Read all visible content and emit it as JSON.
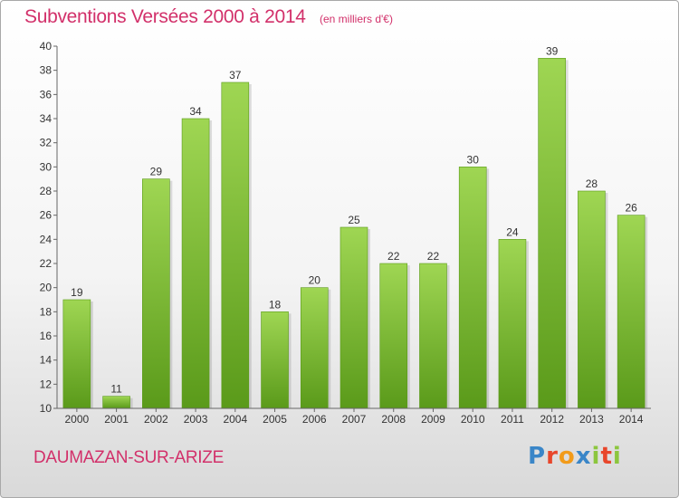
{
  "header": {
    "title": "Subventions Versées 2000 à 2014",
    "subtitle": "(en milliers d'€)"
  },
  "footer": {
    "commune": "DAUMAZAN-SUR-ARIZE",
    "logo_letters": [
      "P",
      "r",
      "o",
      "x",
      "i",
      "t",
      "i"
    ],
    "logo_colors": [
      "#3a86c8",
      "#e8462b",
      "#f29b1a",
      "#3a86c8",
      "#8cc63e",
      "#e8462b",
      "#8cc63e"
    ]
  },
  "chart_data": {
    "type": "bar",
    "title": "Subventions Versées 2000 à 2014",
    "subtitle": "(en milliers d'€)",
    "categories": [
      "2000",
      "2001",
      "2002",
      "2003",
      "2004",
      "2005",
      "2006",
      "2007",
      "2008",
      "2009",
      "2010",
      "2011",
      "2012",
      "2013",
      "2014"
    ],
    "values": [
      19,
      11,
      29,
      34,
      37,
      18,
      20,
      25,
      22,
      22,
      30,
      24,
      39,
      28,
      26
    ],
    "ylim": [
      10,
      40
    ],
    "yticks": [
      10,
      12,
      14,
      16,
      18,
      20,
      22,
      24,
      26,
      28,
      30,
      32,
      34,
      36,
      38,
      40
    ],
    "grid": false,
    "bar_color": "#7dc032",
    "bar_color_light": "#9fd653",
    "bar_color_dark": "#5a9a1a"
  }
}
